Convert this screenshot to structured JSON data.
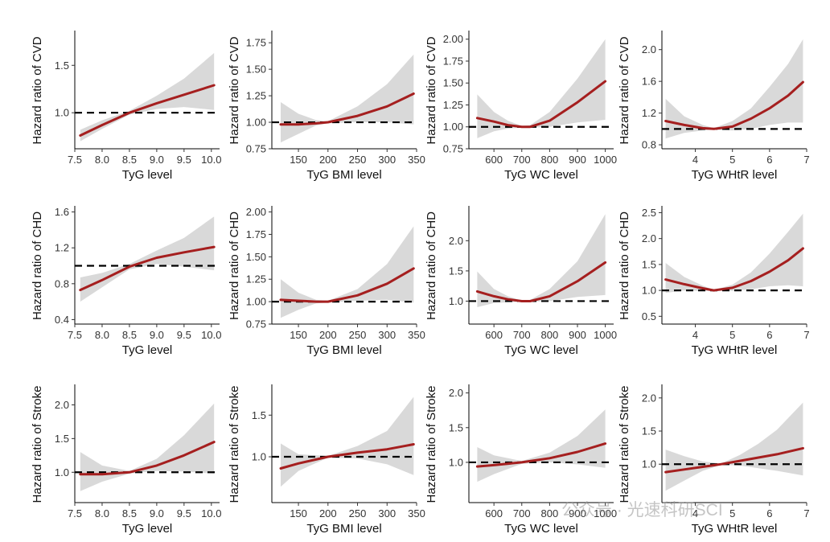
{
  "style": {
    "curve_color": "#a51f1f",
    "band_color": "#d9d9d9",
    "reference_color": "#000000"
  },
  "watermark": "公众号 · 光速科研SCI",
  "chart_data": [
    {
      "type": "line",
      "xlabel": "TyG level",
      "ylabel": "Hazard ratio of CVD",
      "xlim": [
        7.5,
        10.15
      ],
      "ylim": [
        0.62,
        1.85
      ],
      "xticks": [
        7.5,
        8.0,
        8.5,
        9.0,
        9.5,
        10.0
      ],
      "yticks": [
        1.0,
        1.5
      ],
      "x": [
        7.6,
        8.0,
        8.5,
        9.0,
        9.5,
        10.05
      ],
      "y": [
        0.76,
        0.87,
        1.0,
        1.1,
        1.19,
        1.29
      ],
      "lower": [
        0.7,
        0.83,
        0.98,
        1.04,
        1.06,
        1.03
      ],
      "upper": [
        0.82,
        0.92,
        1.02,
        1.18,
        1.36,
        1.63
      ],
      "reference": 1.0
    },
    {
      "type": "line",
      "xlabel": "TyG BMI level",
      "ylabel": "Hazard ratio of CVD",
      "xlim": [
        105,
        350
      ],
      "ylim": [
        0.75,
        1.85
      ],
      "xticks": [
        150,
        200,
        250,
        300,
        350
      ],
      "yticks": [
        0.75,
        1.0,
        1.25,
        1.5,
        1.75
      ],
      "x": [
        120,
        150,
        180,
        200,
        250,
        300,
        345
      ],
      "y": [
        0.98,
        0.98,
        0.99,
        1.0,
        1.06,
        1.15,
        1.27
      ],
      "lower": [
        0.81,
        0.89,
        0.97,
        0.99,
        1.0,
        1.0,
        0.98
      ],
      "upper": [
        1.19,
        1.08,
        1.02,
        1.01,
        1.15,
        1.36,
        1.64
      ],
      "reference": 1.0
    },
    {
      "type": "line",
      "xlabel": "TyG WC level",
      "ylabel": "Hazard ratio of CVD",
      "xlim": [
        510,
        1030
      ],
      "ylim": [
        0.75,
        2.08
      ],
      "xticks": [
        600,
        700,
        800,
        900,
        1000
      ],
      "yticks": [
        0.75,
        1.0,
        1.25,
        1.5,
        1.75,
        2.0
      ],
      "x": [
        540,
        600,
        650,
        700,
        730,
        800,
        900,
        1000
      ],
      "y": [
        1.1,
        1.06,
        1.02,
        1.0,
        1.0,
        1.07,
        1.28,
        1.52
      ],
      "lower": [
        0.87,
        0.95,
        0.98,
        0.99,
        0.99,
        1.0,
        1.05,
        1.08
      ],
      "upper": [
        1.37,
        1.17,
        1.07,
        1.01,
        1.02,
        1.17,
        1.55,
        2.0
      ],
      "reference": 1.0
    },
    {
      "type": "line",
      "xlabel": "TyG WHtR level",
      "ylabel": "Hazard ratio of CVD",
      "xlim": [
        3.1,
        7
      ],
      "ylim": [
        0.75,
        2.22
      ],
      "xticks": [
        4,
        5,
        6,
        7
      ],
      "yticks": [
        0.8,
        1.2,
        1.6,
        2.0
      ],
      "x": [
        3.2,
        3.7,
        4.2,
        4.5,
        5.0,
        5.5,
        6.0,
        6.5,
        6.9
      ],
      "y": [
        1.1,
        1.05,
        1.01,
        1.0,
        1.03,
        1.13,
        1.26,
        1.42,
        1.59
      ],
      "lower": [
        0.88,
        0.95,
        0.98,
        0.99,
        0.98,
        1.0,
        1.05,
        1.08,
        1.08
      ],
      "upper": [
        1.38,
        1.16,
        1.05,
        1.01,
        1.1,
        1.26,
        1.53,
        1.82,
        2.13
      ],
      "reference": 1.0
    },
    {
      "type": "line",
      "xlabel": "TyG level",
      "ylabel": "Hazard ratio of CHD",
      "xlim": [
        7.5,
        10.15
      ],
      "ylim": [
        0.35,
        1.65
      ],
      "xticks": [
        7.5,
        8.0,
        8.5,
        9.0,
        9.5,
        10.0
      ],
      "yticks": [
        0.4,
        0.8,
        1.2,
        1.6
      ],
      "x": [
        7.6,
        8.0,
        8.5,
        9.0,
        9.5,
        10.05
      ],
      "y": [
        0.73,
        0.84,
        0.99,
        1.09,
        1.15,
        1.21
      ],
      "lower": [
        0.6,
        0.76,
        0.96,
        1.02,
        0.99,
        0.95
      ],
      "upper": [
        0.87,
        0.92,
        1.02,
        1.17,
        1.31,
        1.55
      ],
      "reference": 1.0
    },
    {
      "type": "line",
      "xlabel": "TyG BMI level",
      "ylabel": "Hazard ratio of CHD",
      "xlim": [
        105,
        350
      ],
      "ylim": [
        0.75,
        2.05
      ],
      "xticks": [
        150,
        200,
        250,
        300,
        350
      ],
      "yticks": [
        0.75,
        1.0,
        1.25,
        1.5,
        1.75,
        2.0
      ],
      "x": [
        120,
        150,
        180,
        200,
        250,
        300,
        345
      ],
      "y": [
        1.02,
        1.01,
        1.0,
        1.0,
        1.07,
        1.2,
        1.37
      ],
      "lower": [
        0.82,
        0.91,
        0.98,
        0.99,
        1.01,
        1.02,
        0.99
      ],
      "upper": [
        1.25,
        1.1,
        1.02,
        1.01,
        1.14,
        1.42,
        1.84
      ],
      "reference": 1.0
    },
    {
      "type": "line",
      "xlabel": "TyG WC level",
      "ylabel": "Hazard ratio of CHD",
      "xlim": [
        510,
        1030
      ],
      "ylim": [
        0.62,
        2.55
      ],
      "xticks": [
        600,
        700,
        800,
        900,
        1000
      ],
      "yticks": [
        1.0,
        1.5,
        2.0
      ],
      "x": [
        540,
        600,
        650,
        700,
        730,
        800,
        900,
        1000
      ],
      "y": [
        1.16,
        1.08,
        1.03,
        1.0,
        1.0,
        1.08,
        1.33,
        1.64
      ],
      "lower": [
        0.9,
        0.97,
        0.98,
        0.99,
        0.99,
        1.0,
        1.07,
        1.1
      ],
      "upper": [
        1.49,
        1.2,
        1.08,
        1.01,
        1.02,
        1.2,
        1.66,
        2.44
      ],
      "reference": 1.0
    },
    {
      "type": "line",
      "xlabel": "TyG WHtR level",
      "ylabel": "Hazard ratio of CHD",
      "xlim": [
        3.1,
        7
      ],
      "ylim": [
        0.35,
        2.6
      ],
      "xticks": [
        4,
        5,
        6,
        7
      ],
      "yticks": [
        0.5,
        1.0,
        1.5,
        2.0,
        2.5
      ],
      "x": [
        3.2,
        3.7,
        4.2,
        4.5,
        5.0,
        5.5,
        6.0,
        6.5,
        6.9
      ],
      "y": [
        1.21,
        1.12,
        1.04,
        1.0,
        1.05,
        1.18,
        1.36,
        1.58,
        1.81
      ],
      "lower": [
        0.95,
        1.0,
        0.99,
        0.99,
        0.99,
        1.02,
        1.08,
        1.1,
        1.08
      ],
      "upper": [
        1.53,
        1.26,
        1.09,
        1.01,
        1.11,
        1.35,
        1.71,
        2.13,
        2.48
      ],
      "reference": 1.0
    },
    {
      "type": "line",
      "xlabel": "TyG level",
      "ylabel": "Hazard ratio of Stroke",
      "xlim": [
        7.5,
        10.15
      ],
      "ylim": [
        0.55,
        2.28
      ],
      "xticks": [
        7.5,
        8.0,
        8.5,
        9.0,
        9.5,
        10.0
      ],
      "yticks": [
        1.0,
        1.5,
        2.0
      ],
      "x": [
        7.6,
        8.0,
        8.5,
        9.0,
        9.5,
        10.05
      ],
      "y": [
        0.97,
        0.97,
        1.0,
        1.1,
        1.25,
        1.45
      ],
      "lower": [
        0.72,
        0.86,
        0.98,
        1.02,
        1.01,
        0.98
      ],
      "upper": [
        1.3,
        1.1,
        1.02,
        1.2,
        1.55,
        2.02
      ],
      "reference": 1.0
    },
    {
      "type": "line",
      "xlabel": "TyG BMI level",
      "ylabel": "Hazard ratio of Stroke",
      "xlim": [
        105,
        350
      ],
      "ylim": [
        0.45,
        1.85
      ],
      "xticks": [
        150,
        200,
        250,
        300,
        350
      ],
      "yticks": [
        1.0,
        1.5
      ],
      "x": [
        120,
        150,
        200,
        250,
        300,
        345
      ],
      "y": [
        0.86,
        0.92,
        1.0,
        1.05,
        1.09,
        1.15
      ],
      "lower": [
        0.64,
        0.83,
        0.99,
        0.98,
        0.91,
        0.78
      ],
      "upper": [
        1.16,
        1.03,
        1.01,
        1.13,
        1.31,
        1.72
      ],
      "reference": 1.0
    },
    {
      "type": "line",
      "xlabel": "TyG WC level",
      "ylabel": "Hazard ratio of Stroke",
      "xlim": [
        510,
        1030
      ],
      "ylim": [
        0.42,
        2.1
      ],
      "xticks": [
        600,
        700,
        800,
        900,
        1000
      ],
      "yticks": [
        1.0,
        1.5,
        2.0
      ],
      "x": [
        540,
        600,
        700,
        800,
        900,
        1000
      ],
      "y": [
        0.94,
        0.96,
        1.0,
        1.06,
        1.15,
        1.27
      ],
      "lower": [
        0.72,
        0.83,
        0.98,
        1.0,
        0.97,
        0.92
      ],
      "upper": [
        1.22,
        1.1,
        1.02,
        1.14,
        1.38,
        1.76
      ],
      "reference": 1.0
    },
    {
      "type": "line",
      "xlabel": "TyG WHtR level",
      "ylabel": "Hazard ratio of Stroke",
      "xlim": [
        3.1,
        7
      ],
      "ylim": [
        0.42,
        2.18
      ],
      "xticks": [
        4,
        5,
        6,
        7
      ],
      "yticks": [
        1.0,
        1.5,
        2.0
      ],
      "x": [
        3.2,
        3.7,
        4.2,
        4.7,
        5.2,
        5.7,
        6.2,
        6.9
      ],
      "y": [
        0.88,
        0.92,
        0.96,
        1.0,
        1.05,
        1.1,
        1.15,
        1.24
      ],
      "lower": [
        0.6,
        0.75,
        0.9,
        0.99,
        0.98,
        0.94,
        0.9,
        0.83
      ],
      "upper": [
        1.22,
        1.12,
        1.04,
        1.01,
        1.14,
        1.31,
        1.52,
        1.93
      ],
      "reference": 1.0
    }
  ]
}
